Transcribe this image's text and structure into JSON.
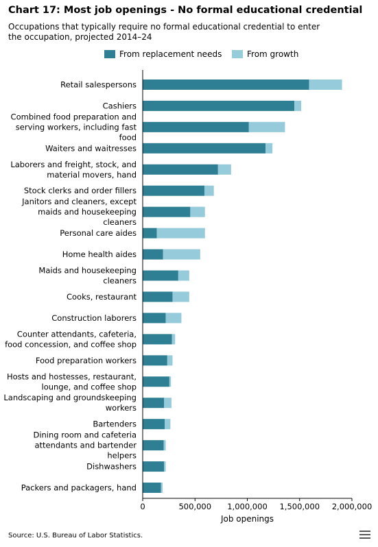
{
  "chart_data": {
    "type": "bar",
    "orientation": "horizontal",
    "stacked": true,
    "title": "Chart 17: Most job openings - No formal educational credential",
    "subtitle": "Occupations that typically require no formal educational credential to enter the occupation, projected 2014–24",
    "xlabel": "Job openings",
    "ylabel": "",
    "xlim": [
      0,
      2000000
    ],
    "xticks": [
      0,
      500000,
      1000000,
      1500000,
      2000000
    ],
    "xtick_labels": [
      "0",
      "500,000",
      "1,000,000",
      "1,500,000",
      "2,000,000"
    ],
    "grid": false,
    "legend_position": "top-center",
    "categories": [
      [
        "Retail salespersons"
      ],
      [
        "Cashiers"
      ],
      [
        "Combined food preparation and",
        "serving workers, including fast",
        "food"
      ],
      [
        "Waiters and waitresses"
      ],
      [
        "Laborers and freight, stock, and",
        "material movers, hand"
      ],
      [
        "Stock clerks and order fillers"
      ],
      [
        "Janitors and cleaners, except",
        "maids and housekeeping",
        "cleaners"
      ],
      [
        "Personal care aides"
      ],
      [
        "Home health aides"
      ],
      [
        "Maids and housekeeping",
        "cleaners"
      ],
      [
        "Cooks, restaurant"
      ],
      [
        "Construction laborers"
      ],
      [
        "Counter attendants, cafeteria,",
        "food concession, and coffee shop"
      ],
      [
        "Food preparation workers"
      ],
      [
        "Hosts and hostesses, restaurant,",
        "lounge, and coffee shop"
      ],
      [
        "Landscaping and groundskeeping",
        "workers"
      ],
      [
        "Bartenders"
      ],
      [
        "Dining room and cafeteria",
        "attendants and bartender",
        "helpers"
      ],
      [
        "Dishwashers"
      ],
      [
        "Packers and packagers, hand"
      ]
    ],
    "series": [
      {
        "name": "From replacement needs",
        "color": "#2e7f93",
        "values": [
          1590000,
          1450000,
          1015000,
          1175000,
          720000,
          590000,
          455000,
          135000,
          195000,
          340000,
          285000,
          220000,
          280000,
          235000,
          255000,
          205000,
          210000,
          200000,
          205000,
          175000
        ]
      },
      {
        "name": "From growth",
        "color": "#96cbdb",
        "values": [
          315000,
          65000,
          345000,
          65000,
          125000,
          90000,
          140000,
          460000,
          355000,
          105000,
          160000,
          150000,
          30000,
          50000,
          15000,
          70000,
          55000,
          20000,
          15000,
          15000
        ]
      }
    ]
  },
  "source_text": "Source: U.S. Bureau of Labor Statistics.",
  "icons": {
    "menu": "hamburger-menu-icon"
  }
}
